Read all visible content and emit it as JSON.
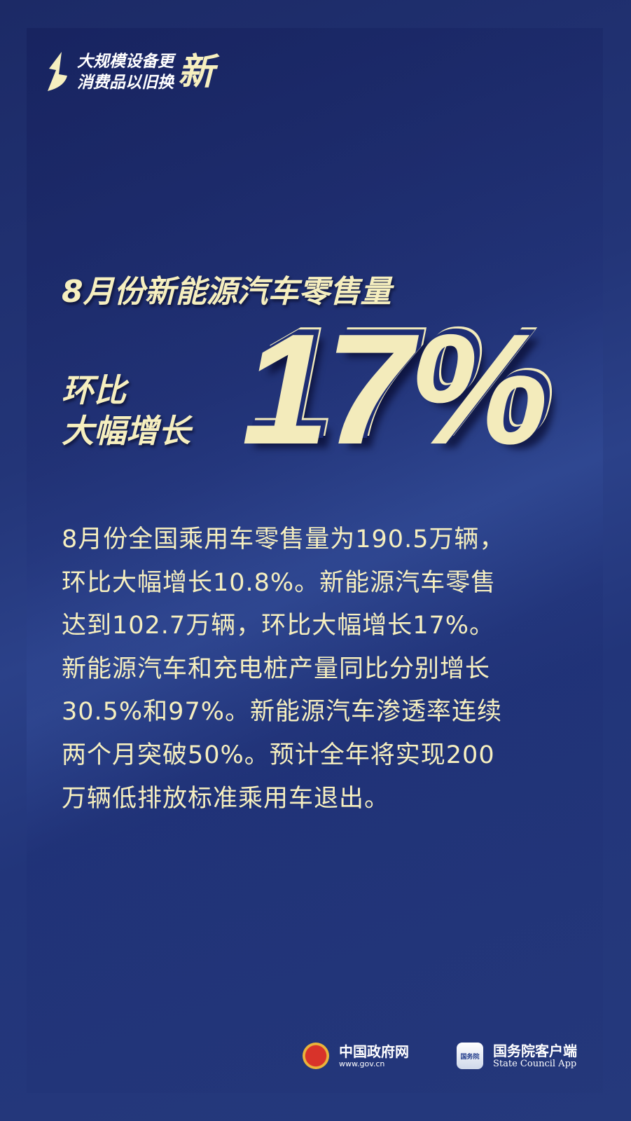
{
  "logo": {
    "line1": "大规模设备更",
    "line2": "消费品以旧换",
    "big": "新"
  },
  "headline": "8月份新能源汽车零售量",
  "subhead": {
    "line1": "环比",
    "line2": "大幅增长"
  },
  "big_number": "17%",
  "body_lines": [
    "8月份全国乘用车零售量为190.5万辆，",
    "环比大幅增长10.8%。新能源汽车零售",
    "达到102.7万辆，环比大幅增长17%。",
    "新能源汽车和充电桩产量同比分别增长",
    "30.5%和97%。新能源汽车渗透率连续",
    "两个月突破50%。预计全年将实现200",
    "万辆低排放标准乘用车退出。"
  ],
  "footer": {
    "gov": {
      "name": "中国政府网",
      "url": "www.gov.cn"
    },
    "app": {
      "icon_text": "国务院",
      "name": "国务院客户端",
      "en": "State Council App"
    }
  },
  "colors": {
    "accent": "#f6efbf",
    "background": "#233578"
  }
}
